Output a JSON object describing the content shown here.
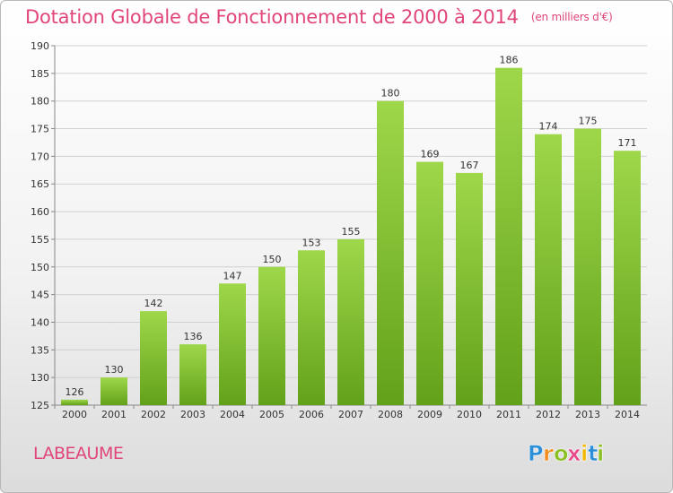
{
  "title": "Dotation Globale de Fonctionnement de 2000 à 2014",
  "unit_note": "(en milliers d'€)",
  "commune": "LABEAUME",
  "logo": {
    "text": "Proxiti",
    "letters": [
      {
        "char": "P",
        "color": "#2b8ed6"
      },
      {
        "char": "r",
        "color": "#f28c1c"
      },
      {
        "char": "o",
        "color": "#8cbf26"
      },
      {
        "char": "x",
        "color": "#e84c8b"
      },
      {
        "char": "i",
        "color": "#f2b705"
      },
      {
        "char": "t",
        "color": "#2b8ed6"
      },
      {
        "char": "i",
        "color": "#8cbf26"
      }
    ]
  },
  "colors": {
    "title": "#e0457b",
    "bar_light": "#9fd74a",
    "bar_dark": "#62a11a",
    "grid": "#d0d0d0",
    "axis_text": "#333333"
  },
  "chart_data": {
    "type": "bar",
    "categories": [
      "2000",
      "2001",
      "2002",
      "2003",
      "2004",
      "2005",
      "2006",
      "2007",
      "2008",
      "2009",
      "2010",
      "2011",
      "2012",
      "2013",
      "2014"
    ],
    "values": [
      126,
      130,
      142,
      136,
      147,
      150,
      153,
      155,
      180,
      169,
      167,
      186,
      174,
      175,
      171
    ],
    "ylim": [
      125,
      190
    ],
    "yticks": [
      125,
      130,
      135,
      140,
      145,
      150,
      155,
      160,
      165,
      170,
      175,
      180,
      185,
      190
    ],
    "grid": true,
    "data_labels": true
  }
}
